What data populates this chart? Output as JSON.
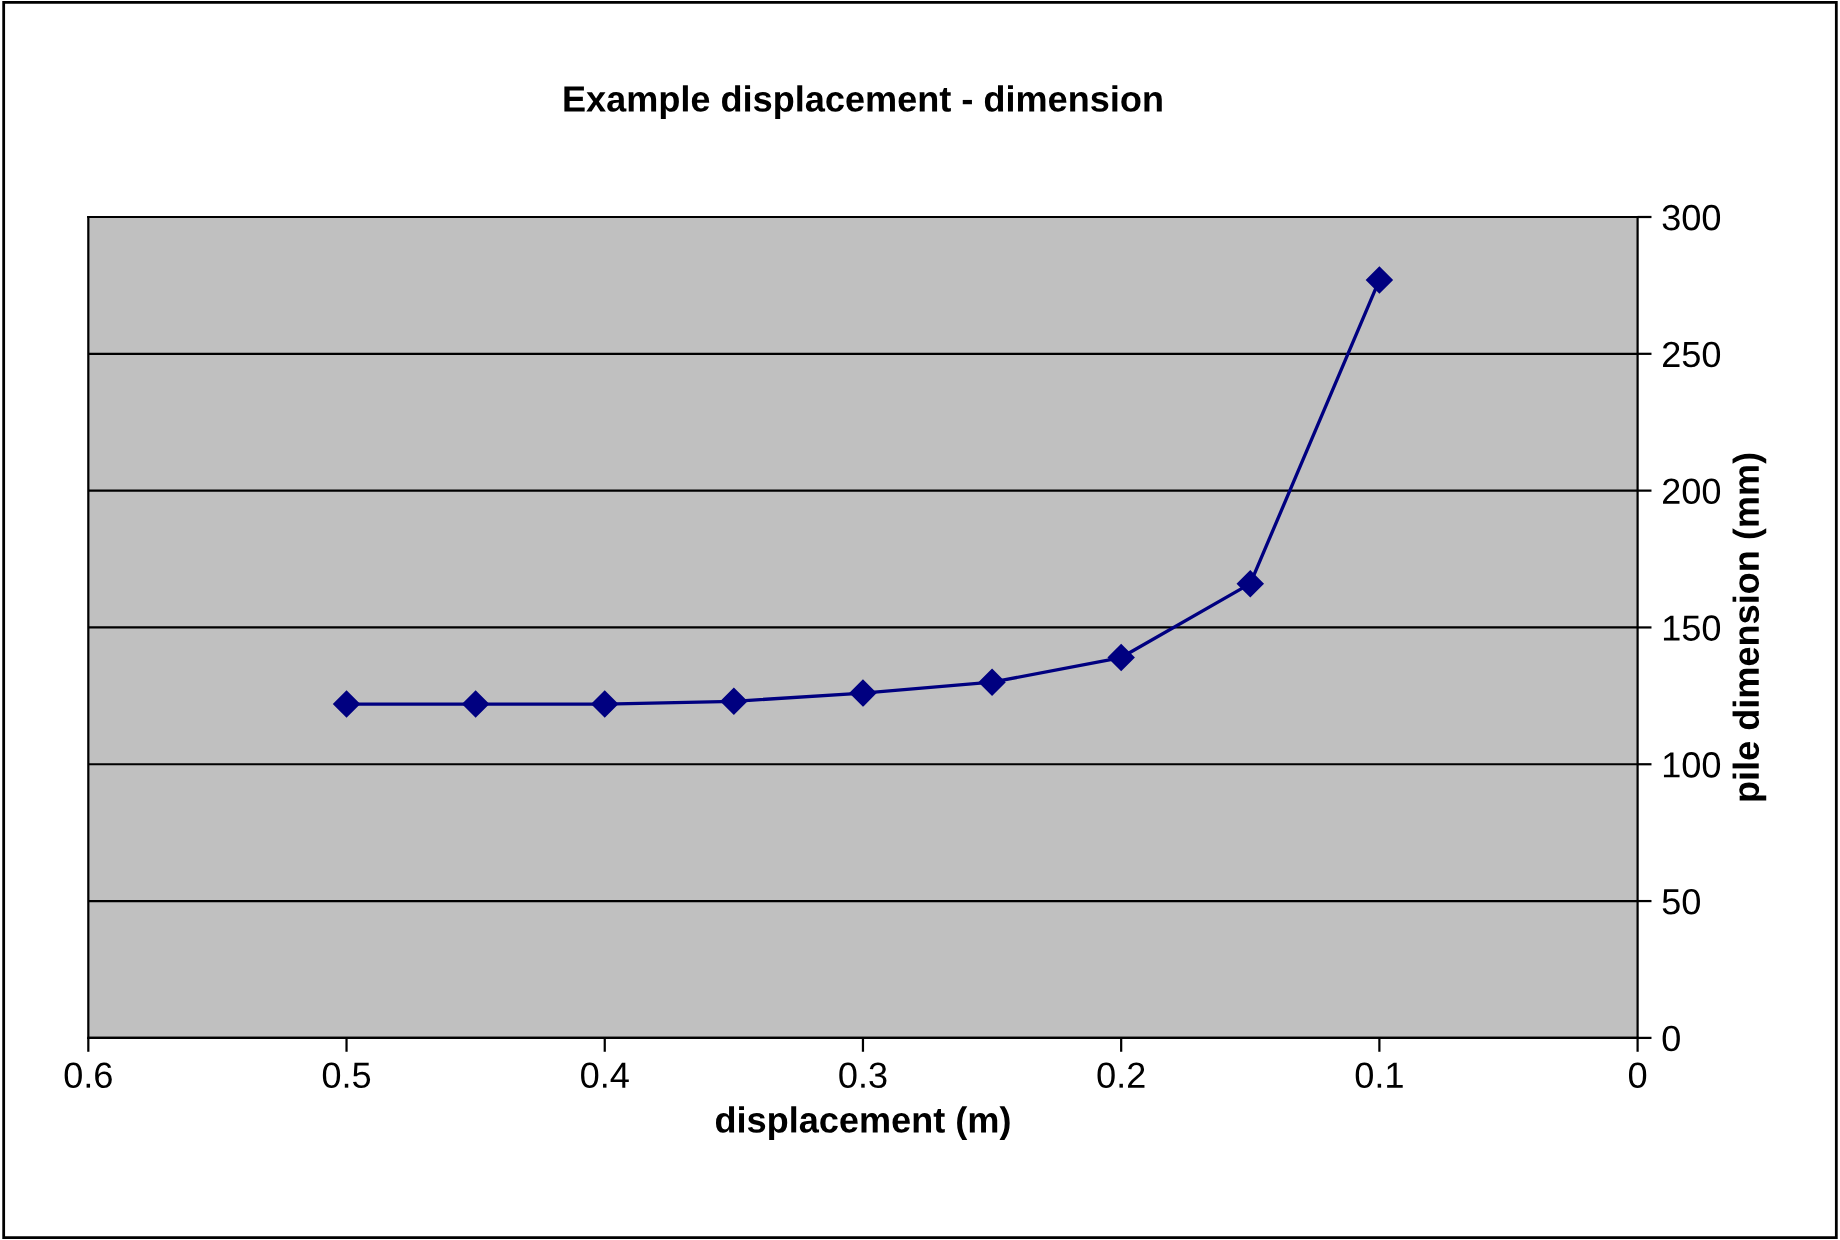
{
  "chart_data": {
    "type": "line",
    "title": "Example displacement - dimension",
    "xlabel": "displacement (m)",
    "ylabel": "pile dimension (mm)",
    "x": [
      0.5,
      0.45,
      0.4,
      0.35,
      0.3,
      0.25,
      0.2,
      0.15,
      0.1
    ],
    "series": [
      {
        "color": "#000080",
        "values": [
          122,
          122,
          122,
          123,
          126,
          130,
          139,
          166,
          277
        ]
      }
    ],
    "xlim": [
      0.6,
      0
    ],
    "xticks": [
      0.6,
      0.5,
      0.4,
      0.3,
      0.2,
      0.1,
      0
    ],
    "ylim": [
      0,
      300
    ],
    "yticks": [
      0,
      50,
      100,
      150,
      200,
      250,
      300
    ],
    "grid": "y",
    "marker": "diamond",
    "line_style": "solid",
    "legend": false
  }
}
